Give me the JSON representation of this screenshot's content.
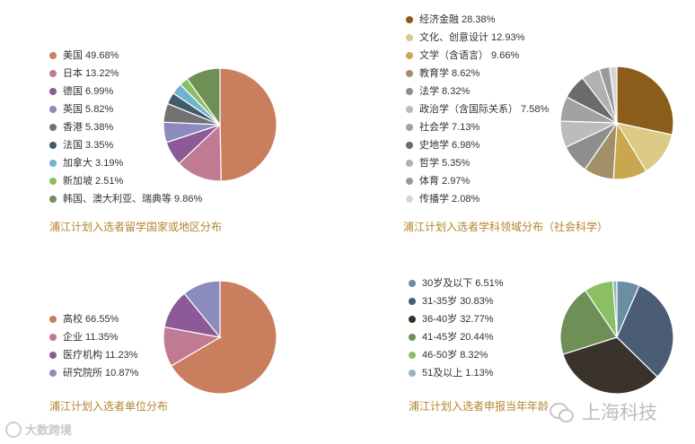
{
  "chart_data": [
    {
      "type": "pie",
      "title": "浦江计划入选者留学国家或地区分布",
      "series": [
        {
          "labels": [
            "美国 49.68%",
            "日本 13.22%",
            "德国 6.99%",
            "英国 5.82%",
            "香港 5.38%",
            "法国 3.35%",
            "加拿大 3.19%",
            "新加坡 2.51%",
            "韩国、澳大利亚、瑞典等 9.86%"
          ],
          "categories": [
            "美国",
            "日本",
            "德国",
            "英国",
            "香港",
            "法国",
            "加拿大",
            "新加坡",
            "韩国、澳大利亚、瑞典等"
          ],
          "values": [
            49.68,
            13.22,
            6.99,
            5.82,
            5.38,
            3.35,
            3.19,
            2.51,
            9.86
          ],
          "colors": [
            "#c97f5e",
            "#c07a92",
            "#8c5a96",
            "#8b8bbd",
            "#727272",
            "#3f5b6c",
            "#6fb3cf",
            "#8bbf63",
            "#6f8f55"
          ]
        }
      ]
    },
    {
      "type": "pie",
      "title": "浦江计划入选者学科领域分布（社会科学）",
      "series": [
        {
          "labels": [
            "经济金融 28.38%",
            "文化、创意设计 12.93%",
            "文学（含语言） 9.66%",
            "教育学 8.62%",
            "法学 8.32%",
            "政治学（含国际关系） 7.58%",
            "社会学 7.13%",
            "史地学 6.98%",
            "哲学 5.35%",
            "体育 2.97%",
            "传播学 2.08%"
          ],
          "categories": [
            "经济金融",
            "文化、创意设计",
            "文学（含语言）",
            "教育学",
            "法学",
            "政治学（含国际关系）",
            "社会学",
            "史地学",
            "哲学",
            "体育",
            "传播学"
          ],
          "values": [
            28.38,
            12.93,
            9.66,
            8.62,
            8.32,
            7.58,
            7.13,
            6.98,
            5.35,
            2.97,
            2.08
          ],
          "colors": [
            "#8b5d1a",
            "#dccb86",
            "#c9a74f",
            "#a49068",
            "#8e8e8e",
            "#bcbcbc",
            "#a2a2a2",
            "#6b6b6b",
            "#b1b1b1",
            "#9a9a9a",
            "#d6d6d6"
          ]
        }
      ]
    },
    {
      "type": "pie",
      "title": "浦江计划入选者单位分布",
      "series": [
        {
          "labels": [
            "高校 66.55%",
            "企业 11.35%",
            "医疗机构 11.23%",
            "研究院所 10.87%"
          ],
          "categories": [
            "高校",
            "企业",
            "医疗机构",
            "研究院所"
          ],
          "values": [
            66.55,
            11.35,
            11.23,
            10.87
          ],
          "colors": [
            "#c97f5e",
            "#c07a92",
            "#8c5a96",
            "#8b8bbd"
          ]
        }
      ]
    },
    {
      "type": "pie",
      "title": "浦江计划入选者申报当年年龄",
      "series": [
        {
          "labels": [
            "30岁及以下 6.51%",
            "31-35岁 30.83%",
            "36-40岁 32.77%",
            "41-45岁 20.44%",
            "46-50岁 8.32%",
            "51及以上 1.13%"
          ],
          "categories": [
            "30岁及以下",
            "31-35岁",
            "36-40岁",
            "41-45岁",
            "46-50岁",
            "51及以上"
          ],
          "values": [
            6.51,
            30.83,
            32.77,
            20.44,
            8.32,
            1.13
          ],
          "colors": [
            "#6a8fa0",
            "#4a5d74",
            "#3a332c",
            "#6e8f56",
            "#8bbf63",
            "#9ab2be"
          ]
        }
      ]
    }
  ],
  "watermarks": {
    "left": "大数跨境",
    "right": "上海科技"
  }
}
